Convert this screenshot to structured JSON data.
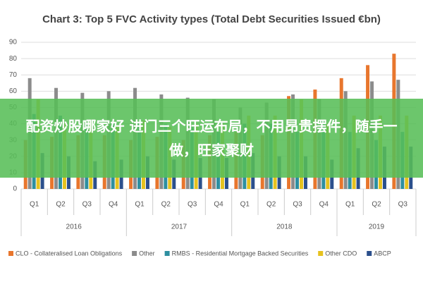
{
  "chart_data": {
    "type": "bar",
    "title": "Chart 3: Top 5 FVC Activity types (Total Debt Securities Issued €bn)",
    "groups": [
      {
        "name": "2016",
        "categories": [
          "Q1",
          "Q2",
          "Q3",
          "Q4"
        ]
      },
      {
        "name": "2017",
        "categories": [
          "Q1",
          "Q2",
          "Q3",
          "Q4"
        ]
      },
      {
        "name": "2018",
        "categories": [
          "Q1",
          "Q2",
          "Q3",
          "Q4"
        ]
      },
      {
        "name": "2019",
        "categories": [
          "Q1",
          "Q2",
          "Q3"
        ]
      }
    ],
    "series": [
      {
        "name": "CLO - Collateralised Loan Obligations",
        "color": "#e8762d",
        "values": [
          30,
          32,
          33,
          33,
          30,
          32,
          30,
          33,
          35,
          33,
          57,
          61,
          68,
          76,
          83
        ]
      },
      {
        "name": "Other",
        "color": "#8c8c8c",
        "values": [
          68,
          62,
          59,
          60,
          62,
          58,
          56,
          55,
          50,
          53,
          58,
          55,
          60,
          66,
          67
        ]
      },
      {
        "name": "RMBS - Residential Mortgage Backed Securities",
        "color": "#2e8fa0",
        "values": [
          46,
          45,
          40,
          40,
          40,
          40,
          38,
          35,
          40,
          40,
          35,
          42,
          35,
          30,
          35
        ]
      },
      {
        "name": "Other CDO",
        "color": "#e6c21e",
        "values": [
          55,
          40,
          42,
          38,
          42,
          38,
          40,
          40,
          45,
          45,
          55,
          40,
          45,
          45,
          45
        ]
      },
      {
        "name": "ABCP",
        "color": "#2b4f8c",
        "values": [
          22,
          20,
          17,
          18,
          20,
          18,
          19,
          19,
          22,
          20,
          20,
          18,
          25,
          26,
          26
        ]
      }
    ],
    "ylim": [
      0,
      90
    ],
    "yticks": [
      0,
      10,
      20,
      30,
      40,
      50,
      60,
      70,
      80,
      90
    ],
    "grid": true
  },
  "overlay": {
    "text": "配资炒股哪家好 进门三个旺运布局，不用昂贵摆件，随手一做，旺家聚财"
  }
}
